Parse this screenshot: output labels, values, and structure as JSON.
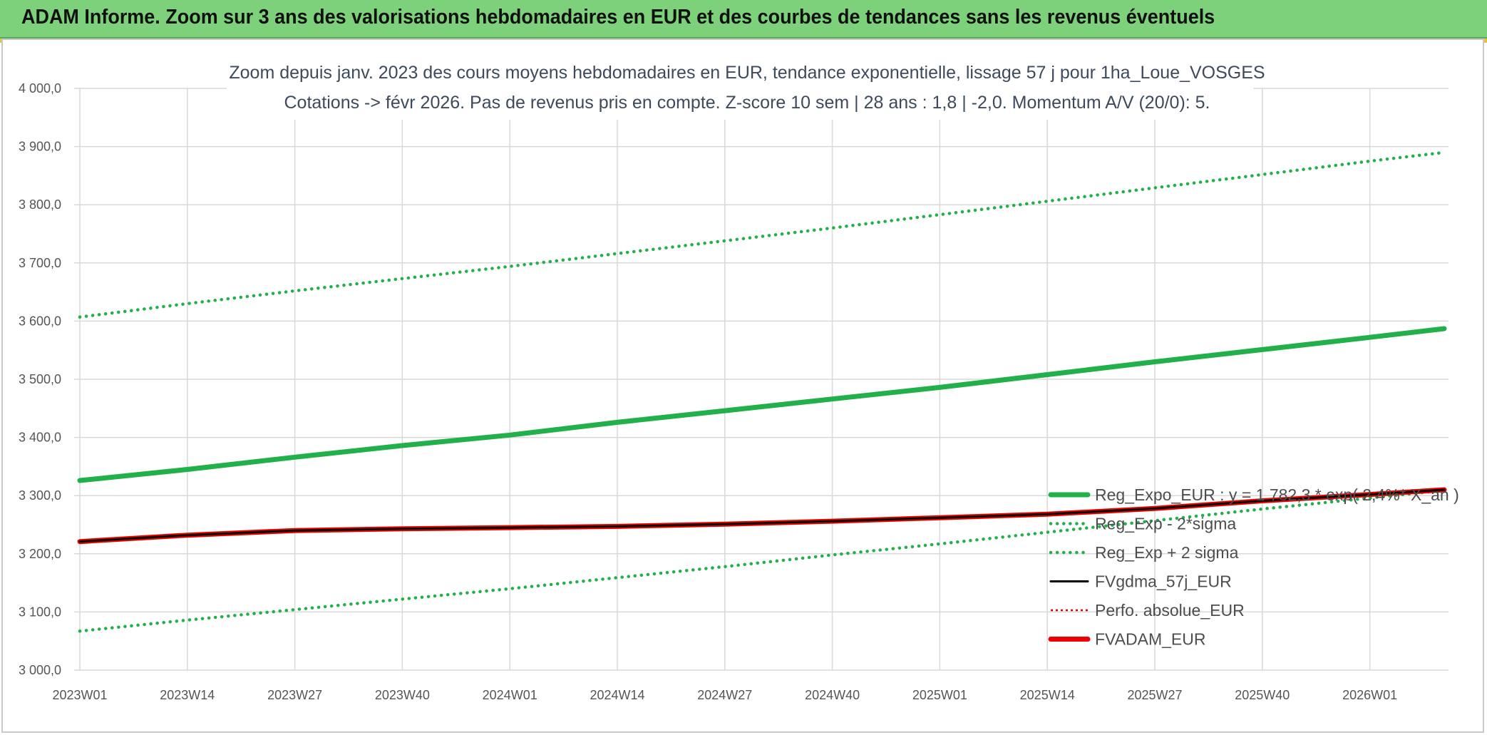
{
  "header": {
    "title": "ADAM Informe. Zoom sur 3 ans des valorisations hebdomadaires en EUR et des courbes de tendances sans les revenus éventuels"
  },
  "chart_data": {
    "type": "line",
    "title": "Zoom depuis janv. 2023 des cours moyens hebdomadaires en EUR, tendance exponentielle, lissage 57 j pour 1ha_Loue_VOSGES",
    "subtitle": "Cotations -> févr 2026. Pas de revenus pris en compte. Z-score 10 sem | 28 ans : 1,8 | -2,0. Momentum A/V (20/0): 5.",
    "xlabel": "",
    "ylabel": "",
    "ylim": [
      3000,
      4000
    ],
    "yticks": [
      "4 000,0",
      "3 900,0",
      "3 800,0",
      "3 700,0",
      "3 600,0",
      "3 500,0",
      "3 400,0",
      "3 300,0",
      "3 200,0",
      "3 100,0",
      "3 000,0"
    ],
    "x_categories": [
      "2023W01",
      "2023W14",
      "2023W27",
      "2023W40",
      "2024W01",
      "2024W14",
      "2024W27",
      "2024W40",
      "2025W01",
      "2025W14",
      "2025W27",
      "2025W40",
      "2026W01"
    ],
    "x_weeks_span": 165,
    "grid": true,
    "legend_position": "bottom-right",
    "series": [
      {
        "name": "Reg_Expo_EUR : y = 1 782,3 * exp( 2,4%* X_an )",
        "color": "#22b04b",
        "style": "solid-thick",
        "x": [
          0,
          13,
          26,
          39,
          52,
          65,
          78,
          91,
          104,
          117,
          130,
          143,
          156,
          165
        ],
        "values": [
          3326,
          3345,
          3366,
          3386,
          3404,
          3426,
          3446,
          3466,
          3486,
          3508,
          3530,
          3551,
          3572,
          3587
        ]
      },
      {
        "name": "Reg_Exp - 2*sigma",
        "color": "#22b04b",
        "style": "dotted",
        "x": [
          0,
          13,
          26,
          39,
          52,
          65,
          78,
          91,
          104,
          117,
          130,
          143,
          156,
          165
        ],
        "values": [
          3067,
          3086,
          3104,
          3122,
          3140,
          3159,
          3178,
          3198,
          3217,
          3237,
          3257,
          3277,
          3296,
          3309
        ]
      },
      {
        "name": "Reg_Exp + 2 sigma",
        "color": "#22b04b",
        "style": "dotted",
        "x": [
          0,
          13,
          26,
          39,
          52,
          65,
          78,
          91,
          104,
          117,
          130,
          143,
          156,
          165
        ],
        "values": [
          3607,
          3630,
          3652,
          3673,
          3694,
          3716,
          3738,
          3760,
          3783,
          3806,
          3829,
          3852,
          3875,
          3890
        ]
      },
      {
        "name": "FVgdma_57j_EUR",
        "color": "#000000",
        "style": "solid",
        "x": [
          0,
          13,
          26,
          39,
          52,
          65,
          78,
          91,
          104,
          117,
          130,
          143,
          156,
          165
        ],
        "values": [
          3221,
          3232,
          3240,
          3243,
          3245,
          3247,
          3251,
          3256,
          3262,
          3268,
          3278,
          3291,
          3302,
          3310
        ]
      },
      {
        "name": "Perfo. absolue_EUR",
        "color": "#e00000",
        "style": "dotted-thin",
        "x": [
          0,
          13,
          26,
          39,
          52,
          65,
          78,
          91,
          104,
          117,
          130,
          143,
          156,
          165
        ],
        "values": [
          3221,
          3232,
          3240,
          3243,
          3245,
          3247,
          3251,
          3256,
          3262,
          3268,
          3278,
          3291,
          3302,
          3310
        ]
      },
      {
        "name": "FVADAM_EUR",
        "color": "#ee0000",
        "style": "solid-thick",
        "x": [
          0,
          13,
          26,
          39,
          52,
          65,
          78,
          91,
          104,
          117,
          130,
          143,
          156,
          165
        ],
        "values": [
          3221,
          3232,
          3240,
          3243,
          3245,
          3247,
          3251,
          3256,
          3262,
          3268,
          3278,
          3291,
          3302,
          3310
        ]
      }
    ]
  }
}
